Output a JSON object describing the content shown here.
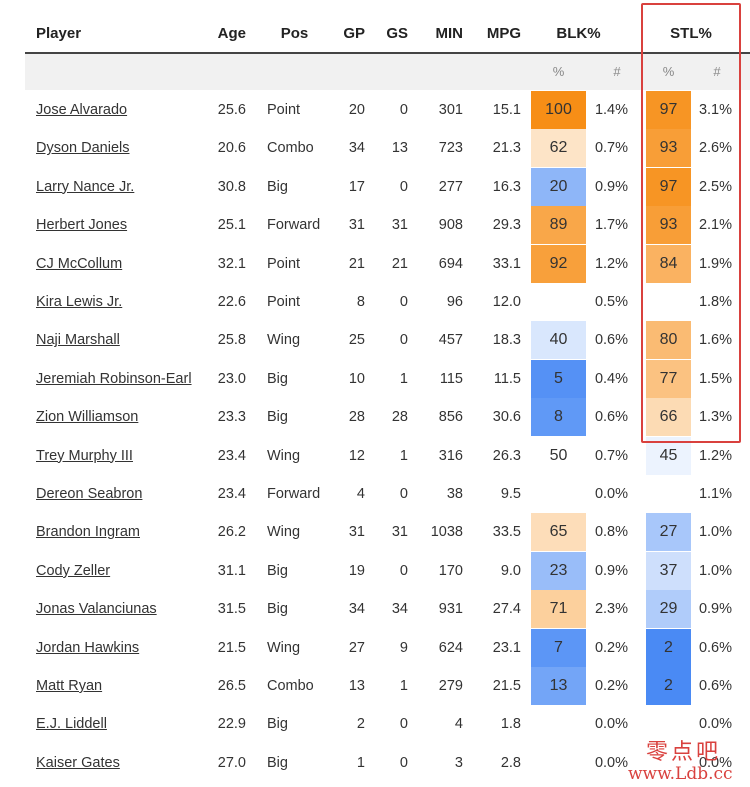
{
  "table": {
    "columns": [
      "Player",
      "Age",
      "Pos",
      "GP",
      "GS",
      "MIN",
      "MPG",
      "BLK%",
      "STL%"
    ],
    "subheader": [
      "%",
      "#",
      "%",
      "#"
    ],
    "rows": [
      [
        "Jose Alvarado",
        "25.6",
        "Point",
        20,
        0,
        301,
        "15.1",
        100,
        "1.4%",
        97,
        "3.1%"
      ],
      [
        "Dyson Daniels",
        "20.6",
        "Combo",
        34,
        13,
        723,
        "21.3",
        62,
        "0.7%",
        93,
        "2.6%"
      ],
      [
        "Larry Nance Jr.",
        "30.8",
        "Big",
        17,
        0,
        277,
        "16.3",
        20,
        "0.9%",
        97,
        "2.5%"
      ],
      [
        "Herbert Jones",
        "25.1",
        "Forward",
        31,
        31,
        908,
        "29.3",
        89,
        "1.7%",
        93,
        "2.1%"
      ],
      [
        "CJ McCollum",
        "32.1",
        "Point",
        21,
        21,
        694,
        "33.1",
        92,
        "1.2%",
        84,
        "1.9%"
      ],
      [
        "Kira Lewis Jr.",
        "22.6",
        "Point",
        8,
        0,
        96,
        "12.0",
        null,
        "0.5%",
        null,
        "1.8%"
      ],
      [
        "Naji Marshall",
        "25.8",
        "Wing",
        25,
        0,
        457,
        "18.3",
        40,
        "0.6%",
        80,
        "1.6%"
      ],
      [
        "Jeremiah Robinson-Earl",
        "23.0",
        "Big",
        10,
        1,
        115,
        "11.5",
        5,
        "0.4%",
        77,
        "1.5%"
      ],
      [
        "Zion Williamson",
        "23.3",
        "Big",
        28,
        28,
        856,
        "30.6",
        8,
        "0.6%",
        66,
        "1.3%"
      ],
      [
        "Trey Murphy III",
        "23.4",
        "Wing",
        12,
        1,
        316,
        "26.3",
        50,
        "0.7%",
        45,
        "1.2%"
      ],
      [
        "Dereon Seabron",
        "23.4",
        "Forward",
        4,
        0,
        38,
        "9.5",
        null,
        "0.0%",
        null,
        "1.1%"
      ],
      [
        "Brandon Ingram",
        "26.2",
        "Wing",
        31,
        31,
        1038,
        "33.5",
        65,
        "0.8%",
        27,
        "1.0%"
      ],
      [
        "Cody Zeller",
        "31.1",
        "Big",
        19,
        0,
        170,
        "9.0",
        23,
        "0.9%",
        37,
        "1.0%"
      ],
      [
        "Jonas Valanciunas",
        "31.5",
        "Big",
        34,
        34,
        931,
        "27.4",
        71,
        "2.3%",
        29,
        "0.9%"
      ],
      [
        "Jordan Hawkins",
        "21.5",
        "Wing",
        27,
        9,
        624,
        "23.1",
        7,
        "0.2%",
        2,
        "0.6%"
      ],
      [
        "Matt Ryan",
        "26.5",
        "Combo",
        13,
        1,
        279,
        "21.5",
        13,
        "0.2%",
        2,
        "0.6%"
      ],
      [
        "E.J. Liddell",
        "22.9",
        "Big",
        2,
        0,
        4,
        "1.8",
        null,
        "0.0%",
        null,
        "0.0%"
      ],
      [
        "Kaiser Gates",
        "27.0",
        "Big",
        1,
        0,
        3,
        "2.8",
        null,
        "0.0%",
        null,
        "0.0%"
      ]
    ]
  },
  "watermark": {
    "title": "零点吧",
    "url": "www.Ldb.cc"
  }
}
